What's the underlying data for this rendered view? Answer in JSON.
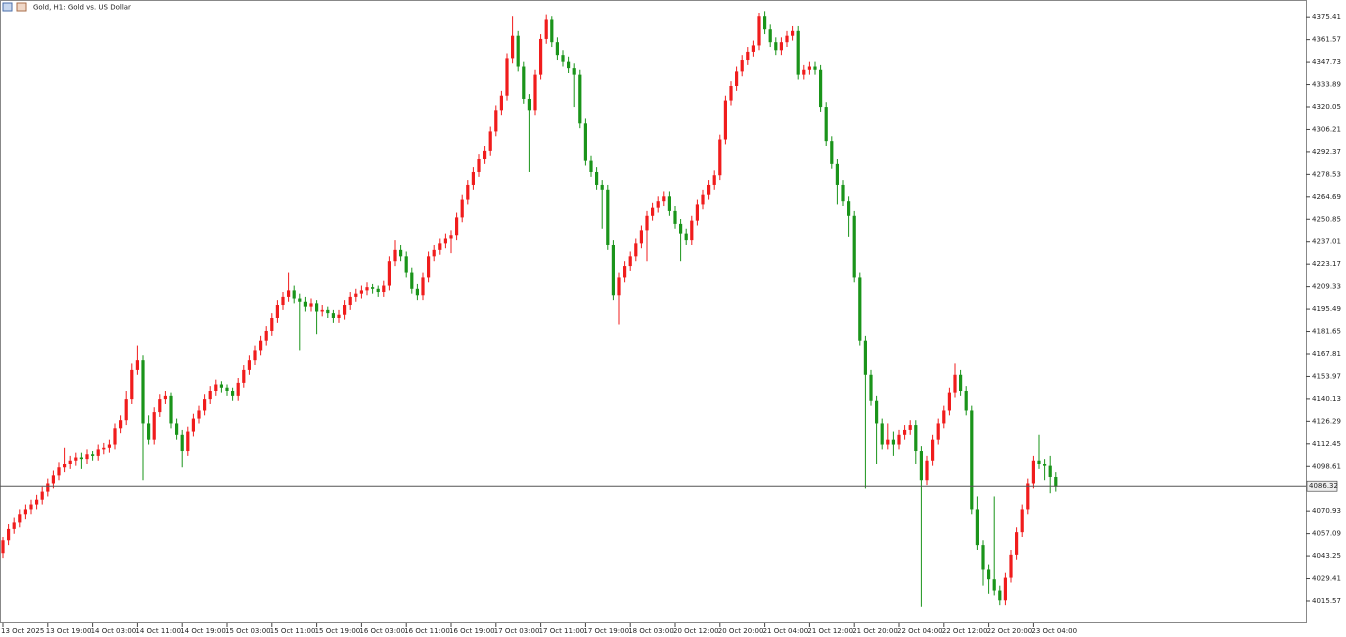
{
  "chart_data": {
    "type": "candlestick",
    "title": "Gold, H1: Gold vs. US Dollar",
    "categories": [
      "13 Oct 2025",
      null,
      null,
      null,
      null,
      null,
      null,
      null,
      "13 Oct 19:00",
      null,
      null,
      null,
      null,
      null,
      null,
      null,
      "14 Oct 03:00",
      null,
      null,
      null,
      null,
      null,
      null,
      null,
      "14 Oct 11:00",
      null,
      null,
      null,
      null,
      null,
      null,
      null,
      "14 Oct 19:00",
      null,
      null,
      null,
      null,
      null,
      null,
      null,
      "15 Oct 03:00",
      null,
      null,
      null,
      null,
      null,
      null,
      null,
      "15 Oct 11:00",
      null,
      null,
      null,
      null,
      null,
      null,
      null,
      "15 Oct 19:00",
      null,
      null,
      null,
      null,
      null,
      null,
      null,
      "16 Oct 03:00",
      null,
      null,
      null,
      null,
      null,
      null,
      null,
      "16 Oct 11:00",
      null,
      null,
      null,
      null,
      null,
      null,
      null,
      "16 Oct 19:00",
      null,
      null,
      null,
      null,
      null,
      null,
      null,
      "17 Oct 03:00",
      null,
      null,
      null,
      null,
      null,
      null,
      null,
      "17 Oct 11:00",
      null,
      null,
      null,
      null,
      null,
      null,
      null,
      "17 Oct 19:00",
      null,
      null,
      null,
      null,
      null,
      null,
      null,
      "18 Oct 03:00",
      null,
      null,
      null,
      null,
      null,
      null,
      null,
      "20 Oct 12:00",
      null,
      null,
      null,
      null,
      null,
      null,
      null,
      "20 Oct 20:00",
      null,
      null,
      null,
      null,
      null,
      null,
      null,
      "21 Oct 04:00",
      null,
      null,
      null,
      null,
      null,
      null,
      null,
      "21 Oct 12:00",
      null,
      null,
      null,
      null,
      null,
      null,
      null,
      "21 Oct 20:00",
      null,
      null,
      null,
      null,
      null,
      null,
      null,
      "22 Oct 04:00",
      null,
      null,
      null,
      null,
      null,
      null,
      null,
      "22 Oct 12:00",
      null,
      null,
      null,
      null,
      null,
      null,
      null,
      "22 Oct 20:00",
      null,
      null,
      null,
      null,
      null,
      null,
      null,
      "23 Oct 04:00",
      null,
      null,
      null,
      null
    ],
    "ohlc": [
      [
        4045,
        4055,
        4042,
        4053
      ],
      [
        4053,
        4063,
        4050,
        4060
      ],
      [
        4060,
        4067,
        4057,
        4064
      ],
      [
        4064,
        4072,
        4061,
        4069
      ],
      [
        4069,
        4075,
        4066,
        4072
      ],
      [
        4072,
        4078,
        4069,
        4075
      ],
      [
        4075,
        4081,
        4072,
        4078
      ],
      [
        4078,
        4086,
        4075,
        4083
      ],
      [
        4083,
        4091,
        4080,
        4088
      ],
      [
        4088,
        4096,
        4085,
        4093
      ],
      [
        4093,
        4101,
        4090,
        4098
      ],
      [
        4098,
        4110,
        4095,
        4100
      ],
      [
        4100,
        4105,
        4097,
        4102
      ],
      [
        4102,
        4107,
        4099,
        4104
      ],
      [
        4104,
        4107,
        4097,
        4103
      ],
      [
        4103,
        4109,
        4100,
        4106
      ],
      [
        4106,
        4108,
        4102,
        4105
      ],
      [
        4105,
        4112,
        4102,
        4109
      ],
      [
        4109,
        4113,
        4106,
        4110
      ],
      [
        4110,
        4115,
        4107,
        4112
      ],
      [
        4112,
        4125,
        4109,
        4122
      ],
      [
        4122,
        4130,
        4119,
        4127
      ],
      [
        4127,
        4145,
        4124,
        4140
      ],
      [
        4140,
        4162,
        4137,
        4158
      ],
      [
        4158,
        4173,
        4155,
        4164
      ],
      [
        4164,
        4167,
        4090,
        4125
      ],
      [
        4125,
        4130,
        4112,
        4115
      ],
      [
        4115,
        4135,
        4112,
        4132
      ],
      [
        4132,
        4143,
        4129,
        4140
      ],
      [
        4140,
        4145,
        4137,
        4142
      ],
      [
        4142,
        4144,
        4122,
        4125
      ],
      [
        4125,
        4128,
        4115,
        4118
      ],
      [
        4118,
        4121,
        4098,
        4108
      ],
      [
        4108,
        4123,
        4105,
        4120
      ],
      [
        4120,
        4131,
        4117,
        4128
      ],
      [
        4128,
        4136,
        4125,
        4133
      ],
      [
        4133,
        4143,
        4130,
        4140
      ],
      [
        4140,
        4148,
        4137,
        4145
      ],
      [
        4145,
        4152,
        4142,
        4149
      ],
      [
        4149,
        4151,
        4144,
        4147
      ],
      [
        4147,
        4149,
        4142,
        4145
      ],
      [
        4145,
        4147,
        4139,
        4142
      ],
      [
        4142,
        4153,
        4139,
        4150
      ],
      [
        4150,
        4161,
        4147,
        4158
      ],
      [
        4158,
        4167,
        4155,
        4164
      ],
      [
        4164,
        4173,
        4161,
        4170
      ],
      [
        4170,
        4179,
        4167,
        4176
      ],
      [
        4176,
        4185,
        4173,
        4182
      ],
      [
        4182,
        4193,
        4179,
        4190
      ],
      [
        4190,
        4201,
        4187,
        4198
      ],
      [
        4198,
        4206,
        4195,
        4203
      ],
      [
        4203,
        4218,
        4200,
        4207
      ],
      [
        4207,
        4210,
        4199,
        4202
      ],
      [
        4202,
        4205,
        4170,
        4200
      ],
      [
        4200,
        4203,
        4194,
        4197
      ],
      [
        4197,
        4202,
        4194,
        4199
      ],
      [
        4199,
        4201,
        4180,
        4194
      ],
      [
        4194,
        4198,
        4191,
        4195
      ],
      [
        4195,
        4197,
        4190,
        4193
      ],
      [
        4193,
        4195,
        4187,
        4190
      ],
      [
        4190,
        4195,
        4187,
        4192
      ],
      [
        4192,
        4201,
        4189,
        4198
      ],
      [
        4198,
        4206,
        4195,
        4203
      ],
      [
        4203,
        4208,
        4200,
        4205
      ],
      [
        4205,
        4210,
        4202,
        4207
      ],
      [
        4207,
        4212,
        4204,
        4209
      ],
      [
        4209,
        4211,
        4205,
        4208
      ],
      [
        4208,
        4210,
        4203,
        4206
      ],
      [
        4206,
        4213,
        4203,
        4210
      ],
      [
        4210,
        4228,
        4207,
        4225
      ],
      [
        4225,
        4238,
        4222,
        4232
      ],
      [
        4232,
        4235,
        4225,
        4228
      ],
      [
        4228,
        4231,
        4215,
        4218
      ],
      [
        4218,
        4221,
        4205,
        4208
      ],
      [
        4208,
        4211,
        4201,
        4204
      ],
      [
        4204,
        4218,
        4201,
        4215
      ],
      [
        4215,
        4231,
        4212,
        4228
      ],
      [
        4228,
        4235,
        4225,
        4232
      ],
      [
        4232,
        4239,
        4229,
        4236
      ],
      [
        4236,
        4242,
        4233,
        4239
      ],
      [
        4239,
        4244,
        4230,
        4241
      ],
      [
        4241,
        4255,
        4238,
        4252
      ],
      [
        4252,
        4266,
        4249,
        4263
      ],
      [
        4263,
        4275,
        4260,
        4272
      ],
      [
        4272,
        4283,
        4269,
        4280
      ],
      [
        4280,
        4291,
        4277,
        4288
      ],
      [
        4288,
        4296,
        4285,
        4293
      ],
      [
        4293,
        4308,
        4290,
        4305
      ],
      [
        4305,
        4321,
        4302,
        4318
      ],
      [
        4318,
        4330,
        4315,
        4327
      ],
      [
        4327,
        4353,
        4324,
        4350
      ],
      [
        4350,
        4376,
        4347,
        4364
      ],
      [
        4364,
        4367,
        4342,
        4345
      ],
      [
        4345,
        4348,
        4322,
        4325
      ],
      [
        4325,
        4328,
        4280,
        4318
      ],
      [
        4318,
        4343,
        4315,
        4340
      ],
      [
        4340,
        4365,
        4337,
        4362
      ],
      [
        4362,
        4377,
        4359,
        4374
      ],
      [
        4374,
        4376,
        4357,
        4360
      ],
      [
        4360,
        4363,
        4349,
        4352
      ],
      [
        4352,
        4355,
        4345,
        4348
      ],
      [
        4348,
        4351,
        4341,
        4344
      ],
      [
        4344,
        4347,
        4320,
        4340
      ],
      [
        4340,
        4343,
        4307,
        4310
      ],
      [
        4310,
        4313,
        4284,
        4287
      ],
      [
        4287,
        4290,
        4277,
        4280
      ],
      [
        4280,
        4283,
        4269,
        4272
      ],
      [
        4272,
        4275,
        4245,
        4269
      ],
      [
        4269,
        4272,
        4232,
        4235
      ],
      [
        4235,
        4238,
        4201,
        4204
      ],
      [
        4204,
        4218,
        4186,
        4215
      ],
      [
        4215,
        4225,
        4212,
        4222
      ],
      [
        4222,
        4231,
        4219,
        4228
      ],
      [
        4228,
        4239,
        4225,
        4236
      ],
      [
        4236,
        4247,
        4233,
        4244
      ],
      [
        4244,
        4256,
        4225,
        4253
      ],
      [
        4253,
        4261,
        4250,
        4258
      ],
      [
        4258,
        4265,
        4255,
        4262
      ],
      [
        4262,
        4268,
        4259,
        4265
      ],
      [
        4265,
        4268,
        4253,
        4256
      ],
      [
        4256,
        4259,
        4245,
        4248
      ],
      [
        4248,
        4251,
        4225,
        4242
      ],
      [
        4242,
        4245,
        4235,
        4238
      ],
      [
        4238,
        4253,
        4235,
        4250
      ],
      [
        4250,
        4263,
        4247,
        4260
      ],
      [
        4260,
        4269,
        4257,
        4266
      ],
      [
        4266,
        4275,
        4263,
        4272
      ],
      [
        4272,
        4281,
        4269,
        4278
      ],
      [
        4278,
        4303,
        4275,
        4300
      ],
      [
        4300,
        4327,
        4297,
        4324
      ],
      [
        4324,
        4336,
        4321,
        4333
      ],
      [
        4333,
        4345,
        4330,
        4342
      ],
      [
        4342,
        4352,
        4339,
        4349
      ],
      [
        4349,
        4357,
        4346,
        4354
      ],
      [
        4354,
        4361,
        4351,
        4358
      ],
      [
        4358,
        4378,
        4355,
        4376
      ],
      [
        4376,
        4379,
        4365,
        4368
      ],
      [
        4368,
        4371,
        4357,
        4360
      ],
      [
        4360,
        4363,
        4352,
        4355
      ],
      [
        4355,
        4363,
        4352,
        4360
      ],
      [
        4360,
        4367,
        4357,
        4364
      ],
      [
        4364,
        4370,
        4361,
        4367
      ],
      [
        4367,
        4370,
        4337,
        4340
      ],
      [
        4340,
        4346,
        4337,
        4343
      ],
      [
        4343,
        4348,
        4340,
        4345
      ],
      [
        4345,
        4348,
        4340,
        4343
      ],
      [
        4343,
        4346,
        4317,
        4320
      ],
      [
        4320,
        4323,
        4296,
        4299
      ],
      [
        4299,
        4302,
        4282,
        4285
      ],
      [
        4285,
        4288,
        4260,
        4272
      ],
      [
        4272,
        4275,
        4259,
        4262
      ],
      [
        4262,
        4265,
        4240,
        4253
      ],
      [
        4253,
        4256,
        4212,
        4215
      ],
      [
        4215,
        4218,
        4173,
        4176
      ],
      [
        4176,
        4179,
        4085,
        4155
      ],
      [
        4155,
        4158,
        4136,
        4139
      ],
      [
        4139,
        4142,
        4100,
        4125
      ],
      [
        4125,
        4128,
        4109,
        4112
      ],
      [
        4112,
        4125,
        4109,
        4115
      ],
      [
        4115,
        4120,
        4105,
        4112
      ],
      [
        4112,
        4121,
        4109,
        4118
      ],
      [
        4118,
        4124,
        4115,
        4121
      ],
      [
        4121,
        4127,
        4118,
        4124
      ],
      [
        4124,
        4127,
        4100,
        4108
      ],
      [
        4108,
        4111,
        4012,
        4090
      ],
      [
        4090,
        4105,
        4087,
        4102
      ],
      [
        4102,
        4118,
        4099,
        4115
      ],
      [
        4115,
        4128,
        4112,
        4125
      ],
      [
        4125,
        4136,
        4122,
        4133
      ],
      [
        4133,
        4147,
        4130,
        4144
      ],
      [
        4144,
        4162,
        4141,
        4155
      ],
      [
        4155,
        4158,
        4142,
        4145
      ],
      [
        4145,
        4148,
        4130,
        4133
      ],
      [
        4133,
        4136,
        4069,
        4072
      ],
      [
        4072,
        4080,
        4047,
        4050
      ],
      [
        4050,
        4053,
        4025,
        4035
      ],
      [
        4035,
        4038,
        4020,
        4029
      ],
      [
        4029,
        4080,
        4019,
        4022
      ],
      [
        4022,
        4025,
        4013,
        4016
      ],
      [
        4016,
        4033,
        4013,
        4030
      ],
      [
        4030,
        4047,
        4027,
        4044
      ],
      [
        4044,
        4061,
        4041,
        4058
      ],
      [
        4058,
        4075,
        4055,
        4072
      ],
      [
        4072,
        4091,
        4069,
        4088
      ],
      [
        4088,
        4105,
        4085,
        4102
      ],
      [
        4102,
        4118,
        4097,
        4100
      ],
      [
        4100,
        4103,
        4090,
        4099
      ],
      [
        4099,
        4105,
        4082,
        4092
      ],
      [
        4092,
        4095,
        4083,
        4086
      ]
    ],
    "up_color": "#f01c1c",
    "down_color": "#1a941a",
    "ylim": [
      4002,
      4386
    ],
    "yticks": [
      4375.41,
      4361.57,
      4347.73,
      4333.89,
      4320.05,
      4306.21,
      4292.37,
      4278.53,
      4264.69,
      4250.85,
      4237.01,
      4223.17,
      4209.33,
      4195.49,
      4181.65,
      4167.81,
      4153.97,
      4140.13,
      4126.29,
      4112.45,
      4098.61,
      4070.93,
      4057.09,
      4043.25,
      4029.41,
      4015.57
    ],
    "current_price": 4086.32,
    "current_price_color": "#555555"
  }
}
